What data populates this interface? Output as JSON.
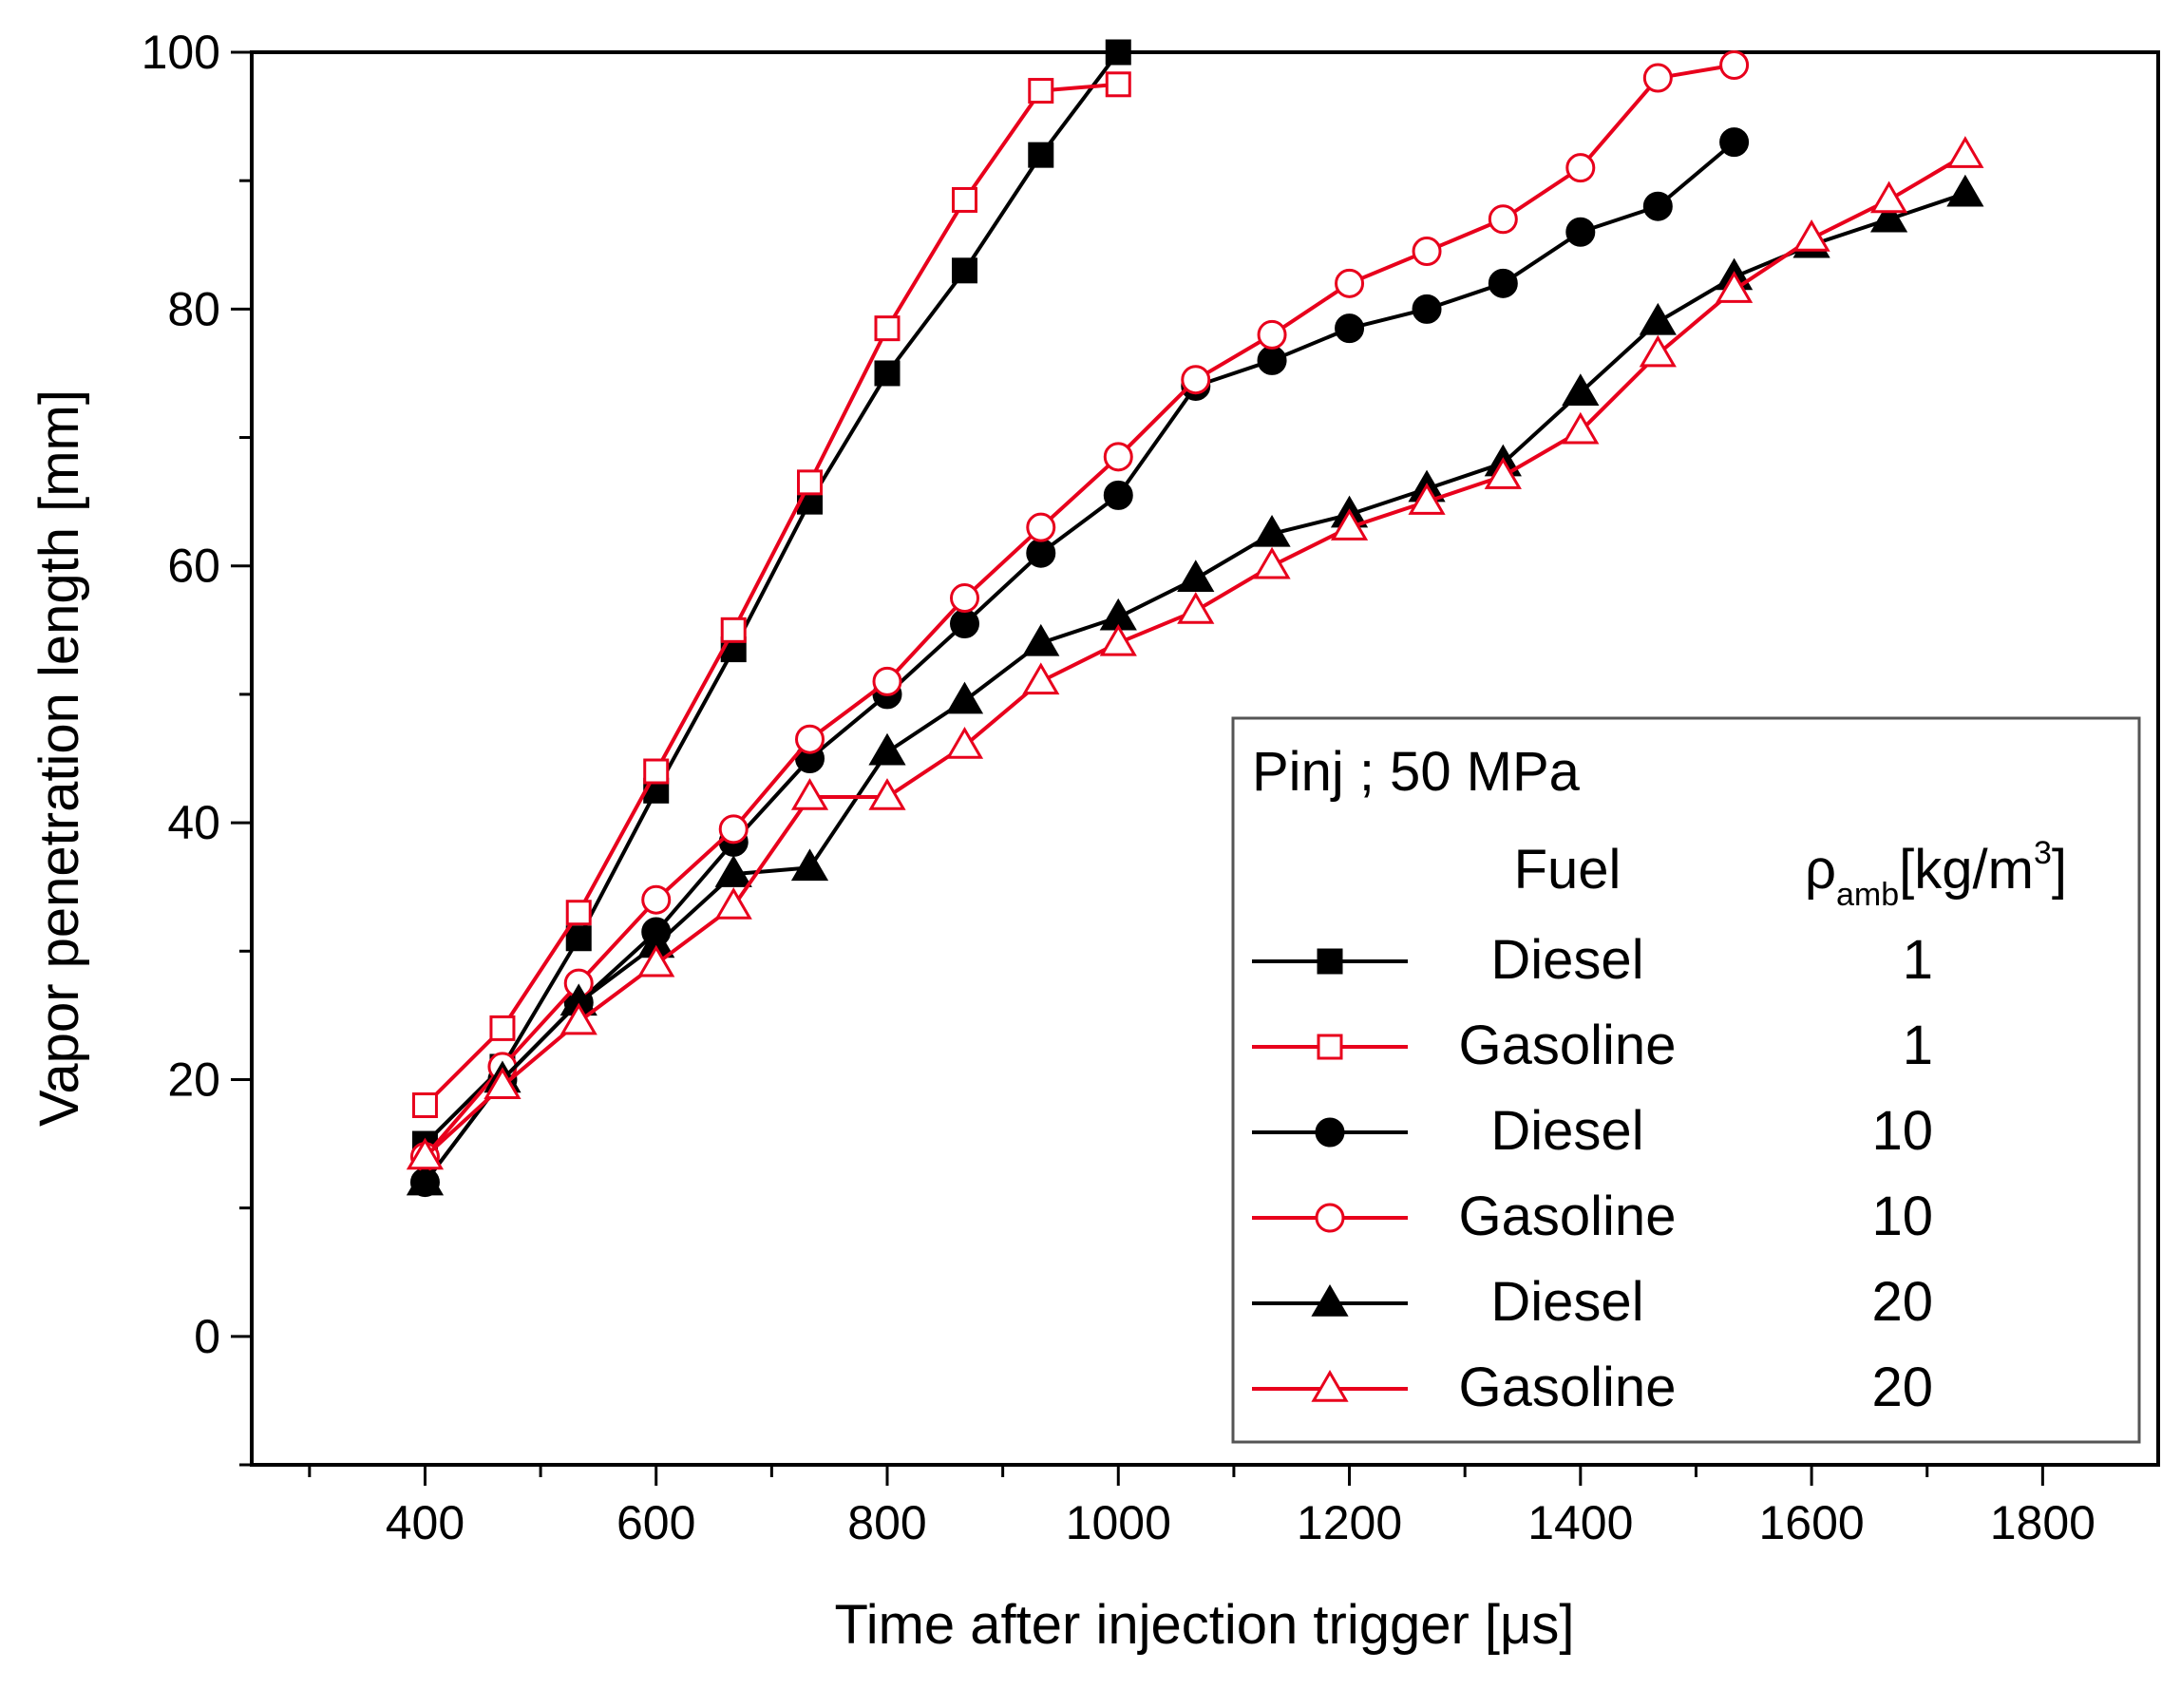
{
  "chart_data": {
    "type": "line",
    "title": "",
    "xlabel": "Time after injection trigger [μs]",
    "ylabel": "Vapor penetration length [mm]",
    "xlim": [
      250,
      1900
    ],
    "ylim": [
      -10,
      100
    ],
    "xticks": [
      "400",
      "600",
      "800",
      "1000",
      "1200",
      "1400",
      "1600",
      "1800"
    ],
    "xtick_values": [
      400,
      600,
      800,
      1000,
      1200,
      1400,
      1600,
      1800
    ],
    "yticks": [
      "100",
      "80",
      "60",
      "40",
      "20",
      "0"
    ],
    "ytick_values": [
      100,
      80,
      60,
      40,
      20,
      0
    ],
    "grid": false,
    "legend": {
      "position": "bottom-right",
      "title": "Pinj ; 50 MPa",
      "col_header_fuel": "Fuel",
      "col_header_rho": "ρ",
      "col_header_rho_sub": "amb",
      "col_header_unit": "[kg/m",
      "col_header_unit_sup": "3",
      "col_header_unit_close": "]"
    },
    "series": [
      {
        "name": "Diesel",
        "rho": "1",
        "color": "#000000",
        "marker": "square",
        "filled": true,
        "x": [
          400,
          467,
          533,
          600,
          667,
          733,
          800,
          867,
          933,
          1000
        ],
        "values": [
          15,
          21,
          31,
          42.5,
          53.5,
          65,
          75,
          83,
          92,
          100
        ]
      },
      {
        "name": "Gasoline",
        "rho": "1",
        "color": "#e8001c",
        "marker": "square",
        "filled": false,
        "x": [
          400,
          467,
          533,
          600,
          667,
          733,
          800,
          867,
          933,
          1000
        ],
        "values": [
          18,
          24,
          33,
          44,
          55,
          66.5,
          78.5,
          88.5,
          97,
          97.5
        ]
      },
      {
        "name": "Diesel",
        "rho": "10",
        "color": "#000000",
        "marker": "circle",
        "filled": true,
        "x": [
          400,
          467,
          533,
          600,
          667,
          733,
          800,
          867,
          933,
          1000,
          1067,
          1133,
          1200,
          1267,
          1333,
          1400,
          1467,
          1533
        ],
        "values": [
          12,
          20,
          26,
          31.5,
          38.5,
          45,
          50,
          55.5,
          61,
          65.5,
          74,
          76,
          78.5,
          80,
          82,
          86,
          88,
          93
        ]
      },
      {
        "name": "Gasoline",
        "rho": "10",
        "color": "#e8001c",
        "marker": "circle",
        "filled": false,
        "x": [
          400,
          467,
          533,
          600,
          667,
          733,
          800,
          867,
          933,
          1000,
          1067,
          1133,
          1200,
          1267,
          1333,
          1400,
          1467,
          1533
        ],
        "values": [
          14,
          21,
          27.5,
          34,
          39.5,
          46.5,
          51,
          57.5,
          63,
          68.5,
          74.5,
          78,
          82,
          84.5,
          87,
          91,
          98,
          99
        ]
      },
      {
        "name": "Diesel",
        "rho": "20",
        "color": "#000000",
        "marker": "triangle",
        "filled": true,
        "x": [
          400,
          467,
          533,
          600,
          667,
          733,
          800,
          867,
          933,
          1000,
          1067,
          1133,
          1200,
          1267,
          1333,
          1400,
          1467,
          1533,
          1600,
          1667,
          1733
        ],
        "values": [
          12,
          20,
          26,
          30.5,
          36,
          36.5,
          45.5,
          49.5,
          54,
          56,
          59,
          62.5,
          64,
          66,
          68,
          73.5,
          79,
          82.5,
          85,
          87,
          89
        ]
      },
      {
        "name": "Gasoline",
        "rho": "20",
        "color": "#e8001c",
        "marker": "triangle",
        "filled": false,
        "x": [
          400,
          467,
          533,
          600,
          667,
          733,
          800,
          867,
          933,
          1000,
          1067,
          1133,
          1200,
          1267,
          1333,
          1400,
          1467,
          1533,
          1600,
          1667,
          1733
        ],
        "values": [
          14,
          19.5,
          24.5,
          29,
          33.5,
          42,
          42,
          46,
          51,
          54,
          56.5,
          60,
          63,
          65,
          67,
          70.5,
          76.5,
          81.5,
          85.5,
          88.5,
          92
        ]
      }
    ]
  }
}
